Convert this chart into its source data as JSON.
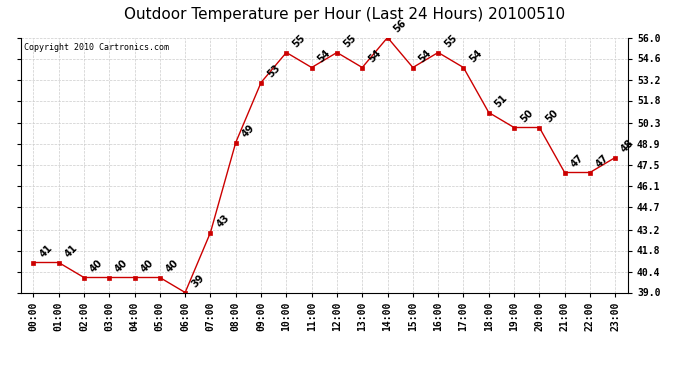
{
  "title": "Outdoor Temperature per Hour (Last 24 Hours) 20100510",
  "copyright_text": "Copyright 2010 Cartronics.com",
  "hours": [
    "00:00",
    "01:00",
    "02:00",
    "03:00",
    "04:00",
    "05:00",
    "06:00",
    "07:00",
    "08:00",
    "09:00",
    "10:00",
    "11:00",
    "12:00",
    "13:00",
    "14:00",
    "15:00",
    "16:00",
    "17:00",
    "18:00",
    "19:00",
    "20:00",
    "21:00",
    "22:00",
    "23:00"
  ],
  "temps": [
    41,
    41,
    40,
    40,
    40,
    40,
    39,
    43,
    49,
    53,
    55,
    54,
    55,
    54,
    56,
    54,
    55,
    54,
    51,
    50,
    50,
    47,
    47,
    48
  ],
  "ylim_min": 39.0,
  "ylim_max": 56.0,
  "yticks": [
    39.0,
    40.4,
    41.8,
    43.2,
    44.7,
    46.1,
    47.5,
    48.9,
    50.3,
    51.8,
    53.2,
    54.6,
    56.0
  ],
  "line_color": "#cc0000",
  "marker_color": "#cc0000",
  "bg_color": "#ffffff",
  "grid_color": "#cccccc",
  "title_fontsize": 11,
  "label_fontsize": 7,
  "annotation_fontsize": 7,
  "copyright_fontsize": 6
}
